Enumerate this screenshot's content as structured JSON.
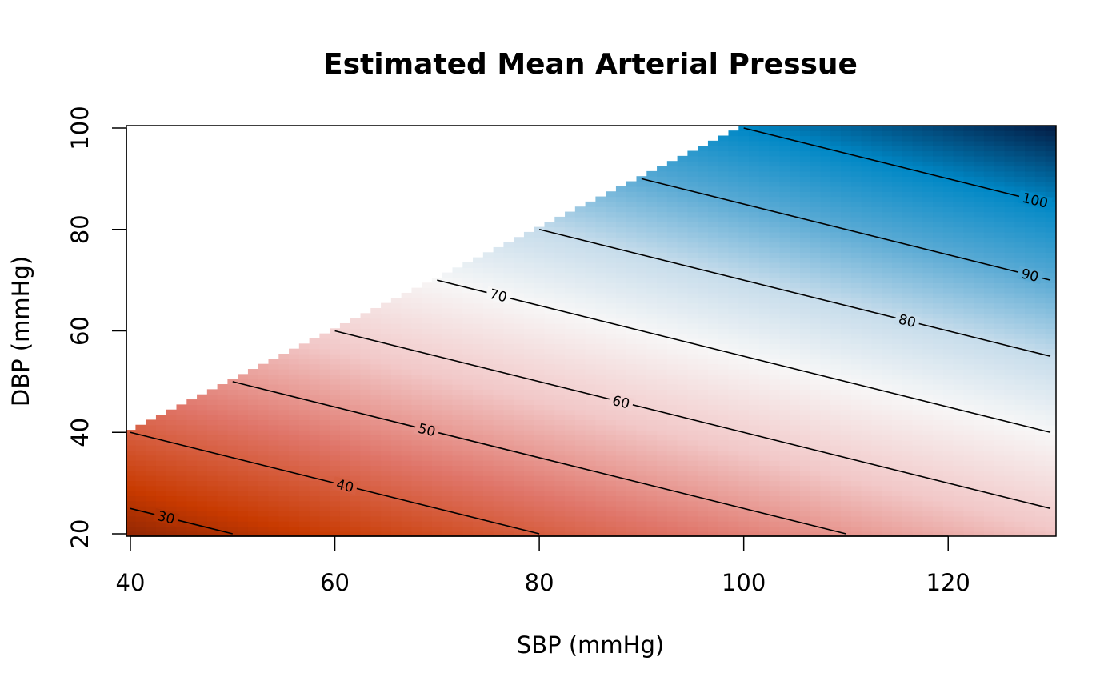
{
  "chart_data": {
    "type": "heatmap",
    "title": "Estimated Mean Arterial Pressue",
    "xlabel": "SBP (mmHg)",
    "ylabel": "DBP (mmHg)",
    "xlim": [
      40,
      130
    ],
    "ylim": [
      20,
      100
    ],
    "x_ticks": [
      40,
      60,
      80,
      100,
      120
    ],
    "y_ticks": [
      20,
      40,
      60,
      80,
      100
    ],
    "x_tick_labels": [
      "40",
      "60",
      "80",
      "100",
      "120"
    ],
    "y_tick_labels": [
      "20",
      "40",
      "60",
      "80",
      "100"
    ],
    "grid": false,
    "legend": "none",
    "cell_size": 1,
    "valid_region": "DBP <= SBP",
    "value_formula": "DBP + (SBP - DBP) / 3",
    "color_scale": {
      "low_value": 20,
      "mid_value": 70,
      "high_value": 110,
      "low_colors": [
        "#5a1408",
        "#c83a00",
        "#e0766a",
        "#f2c8c8",
        "#f7f7f7"
      ],
      "high_colors": [
        "#f7f7f7",
        "#c6dceb",
        "#5aaad4",
        "#0088c6",
        "#03214a"
      ]
    },
    "contour_levels": [
      30,
      40,
      50,
      60,
      70,
      80,
      90,
      100
    ],
    "contour_labels": [
      {
        "level": 30,
        "text": "30",
        "x": 43.5
      },
      {
        "level": 40,
        "text": "40",
        "x": 61
      },
      {
        "level": 50,
        "text": "50",
        "x": 69
      },
      {
        "level": 60,
        "text": "60",
        "x": 88
      },
      {
        "level": 70,
        "text": "70",
        "x": 76
      },
      {
        "level": 80,
        "text": "80",
        "x": 116
      },
      {
        "level": 90,
        "text": "90",
        "x": 128
      },
      {
        "level": 100,
        "text": "100",
        "x": 128.5
      }
    ]
  }
}
